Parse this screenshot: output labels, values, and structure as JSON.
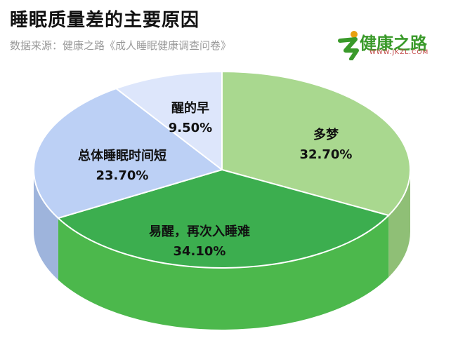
{
  "header": {
    "title": "睡眠质量差的主要原因",
    "source": "数据来源：健康之路《成人睡眠健康调查问卷》"
  },
  "logo": {
    "text": "健康之路",
    "sub": "WWW.JKZL.COM",
    "icon": "runner-icon",
    "color": "#3a9a2a"
  },
  "chart_data": {
    "type": "pie",
    "style": "3d",
    "title": "睡眠质量差的主要原因",
    "slices": [
      {
        "label": "多梦",
        "value_text": "32.70%",
        "value": 32.7,
        "color": "#a9d88f",
        "side": "#8fbf76"
      },
      {
        "label": "易醒，再次入睡难",
        "value_text": "34.10%",
        "value": 34.1,
        "color": "#3cae4f",
        "side": "#4cb84c"
      },
      {
        "label": "总体睡眠时间短",
        "value_text": "23.70%",
        "value": 23.7,
        "color": "#bcd0f5",
        "side": "#9eb4dc"
      },
      {
        "label": "醒的早",
        "value_text": "9.50%",
        "value": 9.5,
        "color": "#dde6fb",
        "side": "#c3cfe6"
      }
    ]
  }
}
